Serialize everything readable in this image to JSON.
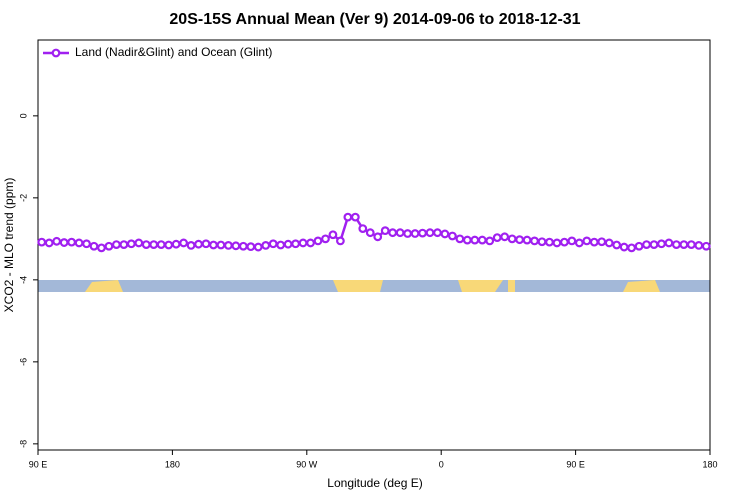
{
  "chart_data": {
    "type": "line",
    "title": "20S-15S Annual Mean (Ver 9)   2014-09-06 to 2018-12-31",
    "xlabel": "Longitude (deg E)",
    "ylabel": "XCO2 - MLO trend (ppm)",
    "x": [
      92.5,
      97.5,
      102.5,
      107.5,
      112.5,
      117.5,
      122.5,
      127.5,
      132.5,
      137.5,
      142.5,
      147.5,
      152.5,
      157.5,
      162.5,
      167.5,
      172.5,
      177.5,
      182.5,
      187.5,
      192.5,
      197.5,
      202.5,
      207.5,
      212.5,
      217.5,
      222.5,
      227.5,
      232.5,
      237.5,
      242.5,
      247.5,
      252.5,
      257.5,
      262.5,
      267.5,
      272.5,
      277.5,
      282.5,
      287.5,
      292.5,
      297.5,
      302.5,
      307.5,
      312.5,
      317.5,
      322.5,
      327.5,
      332.5,
      337.5,
      342.5,
      347.5,
      352.5,
      357.5,
      362.5,
      367.5,
      372.5,
      377.5,
      382.5,
      387.5,
      392.5,
      397.5,
      402.5,
      407.5,
      412.5,
      417.5,
      422.5,
      427.5,
      432.5,
      437.5,
      442.5,
      447.5,
      452.5,
      457.5,
      462.5,
      467.5,
      472.5,
      477.5,
      482.5,
      487.5,
      492.5,
      497.5,
      502.5,
      507.5,
      512.5,
      517.5,
      522.5,
      527.5,
      532.5,
      537.5
    ],
    "series": [
      {
        "name": "Land (Nadir&Glint) and Ocean (Glint)",
        "color": "#a020f0",
        "values": [
          -3.08,
          -3.1,
          -3.06,
          -3.09,
          -3.08,
          -3.1,
          -3.12,
          -3.18,
          -3.22,
          -3.18,
          -3.14,
          -3.14,
          -3.12,
          -3.1,
          -3.14,
          -3.14,
          -3.14,
          -3.15,
          -3.13,
          -3.1,
          -3.16,
          -3.13,
          -3.12,
          -3.15,
          -3.15,
          -3.16,
          -3.17,
          -3.18,
          -3.19,
          -3.2,
          -3.16,
          -3.12,
          -3.15,
          -3.13,
          -3.12,
          -3.1,
          -3.1,
          -3.05,
          -3.0,
          -2.9,
          -3.05,
          -2.47,
          -2.47,
          -2.75,
          -2.85,
          -2.95,
          -2.8,
          -2.85,
          -2.85,
          -2.87,
          -2.87,
          -2.86,
          -2.85,
          -2.85,
          -2.88,
          -2.93,
          -3.0,
          -3.03,
          -3.03,
          -3.03,
          -3.05,
          -2.97,
          -2.95,
          -3.0,
          -3.02,
          -3.03,
          -3.05,
          -3.07,
          -3.08,
          -3.1,
          -3.08,
          -3.05,
          -3.1,
          -3.05,
          -3.08,
          -3.07,
          -3.1,
          -3.15,
          -3.2,
          -3.22,
          -3.18,
          -3.14,
          -3.14,
          -3.12,
          -3.1,
          -3.14,
          -3.14,
          -3.14,
          -3.16,
          -3.18
        ]
      }
    ],
    "xlim": [
      90,
      540
    ],
    "xticks": [
      {
        "value": 90,
        "label": "90 E"
      },
      {
        "value": 180,
        "label": "180"
      },
      {
        "value": 270,
        "label": "90 W"
      },
      {
        "value": 360,
        "label": "0"
      },
      {
        "value": 450,
        "label": "90 E"
      },
      {
        "value": 540,
        "label": "180"
      }
    ],
    "ylim": [
      -8.15,
      1.85
    ],
    "yticks": [
      0,
      -2,
      -4,
      -6,
      -8
    ],
    "legend": "top-left"
  }
}
